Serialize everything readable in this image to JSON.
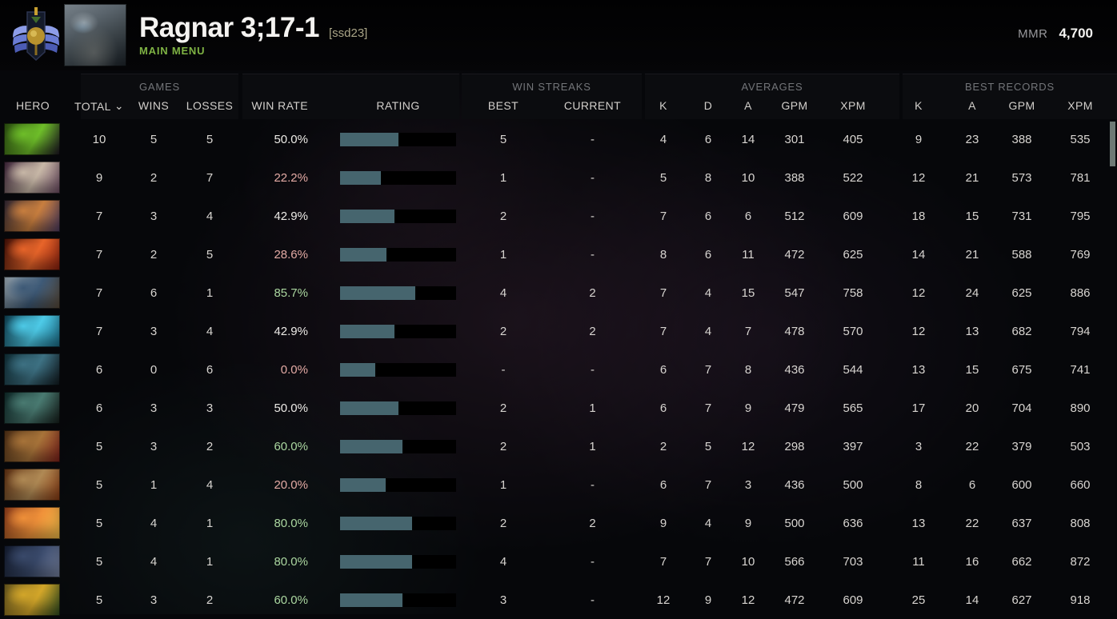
{
  "header": {
    "player_name": "Ragnar 3;17-1",
    "player_tag": "[ssd23]",
    "nav_label": "MAIN MENU",
    "mmr_label": "MMR",
    "mmr_value": "4,700",
    "rank_medal_icon": "winged-shield-medal",
    "accent_green": "#7fb344"
  },
  "table": {
    "groups": {
      "games": "GAMES",
      "win_streaks": "WIN STREAKS",
      "averages": "AVERAGES",
      "best_records": "BEST RECORDS"
    },
    "columns": {
      "hero": "HERO",
      "total": "TOTAL",
      "wins": "WINS",
      "losses": "LOSSES",
      "win_rate": "WIN RATE",
      "rating": "RATING",
      "best": "BEST",
      "current": "CURRENT",
      "k": "K",
      "d": "D",
      "a": "A",
      "gpm": "GPM",
      "xpm": "XPM"
    },
    "sorted_by": "total",
    "bar_fill_color": "#46656e",
    "bar_bg_color": "#000000",
    "rows": [
      {
        "hero": "rubick",
        "hero_colors": [
          "#2a4d10",
          "#6fbf2a",
          "#1a1022"
        ],
        "total": "10",
        "wins": "5",
        "losses": "5",
        "win_rate": "50.0%",
        "win_rate_tone": "mid",
        "rating_pct": 50,
        "best": "5",
        "current": "-",
        "k": "4",
        "d": "6",
        "a": "14",
        "gpm": "301",
        "xpm": "405",
        "rec_k": "9",
        "rec_a": "23",
        "rec_gpm": "388",
        "rec_xpm": "535"
      },
      {
        "hero": "invoker",
        "hero_colors": [
          "#3a2137",
          "#c9b9a8",
          "#6b4a62"
        ],
        "total": "9",
        "wins": "2",
        "losses": "7",
        "win_rate": "22.2%",
        "win_rate_tone": "low",
        "rating_pct": 35,
        "best": "1",
        "current": "-",
        "k": "5",
        "d": "8",
        "a": "10",
        "gpm": "388",
        "xpm": "522",
        "rec_k": "12",
        "rec_a": "21",
        "rec_gpm": "573",
        "rec_xpm": "781"
      },
      {
        "hero": "anti-mage",
        "hero_colors": [
          "#2b2331",
          "#c97f3f",
          "#4a3a62"
        ],
        "total": "7",
        "wins": "3",
        "losses": "4",
        "win_rate": "42.9%",
        "win_rate_tone": "mid",
        "rating_pct": 47,
        "best": "2",
        "current": "-",
        "k": "7",
        "d": "6",
        "a": "6",
        "gpm": "512",
        "xpm": "609",
        "rec_k": "18",
        "rec_a": "15",
        "rec_gpm": "731",
        "rec_xpm": "795"
      },
      {
        "hero": "ember-spirit",
        "hero_colors": [
          "#3d0d06",
          "#e8652a",
          "#8a1f0e"
        ],
        "total": "7",
        "wins": "2",
        "losses": "5",
        "win_rate": "28.6%",
        "win_rate_tone": "low",
        "rating_pct": 40,
        "best": "1",
        "current": "-",
        "k": "8",
        "d": "6",
        "a": "11",
        "gpm": "472",
        "xpm": "625",
        "rec_k": "14",
        "rec_a": "21",
        "rec_gpm": "588",
        "rec_xpm": "769"
      },
      {
        "hero": "kunkka",
        "hero_colors": [
          "#9aa7b0",
          "#3e5a77",
          "#5a4a38"
        ],
        "total": "7",
        "wins": "6",
        "losses": "1",
        "win_rate": "85.7%",
        "win_rate_tone": "high",
        "rating_pct": 65,
        "best": "4",
        "current": "2",
        "k": "7",
        "d": "4",
        "a": "15",
        "gpm": "547",
        "xpm": "758",
        "rec_k": "12",
        "rec_a": "24",
        "rec_gpm": "625",
        "rec_xpm": "886"
      },
      {
        "hero": "morphling",
        "hero_colors": [
          "#0d3b4d",
          "#4ecbe8",
          "#1a6a85"
        ],
        "total": "7",
        "wins": "3",
        "losses": "4",
        "win_rate": "42.9%",
        "win_rate_tone": "mid",
        "rating_pct": 47,
        "best": "2",
        "current": "2",
        "k": "7",
        "d": "4",
        "a": "7",
        "gpm": "478",
        "xpm": "570",
        "rec_k": "12",
        "rec_a": "13",
        "rec_gpm": "682",
        "rec_xpm": "794"
      },
      {
        "hero": "phantom-assassin",
        "hero_colors": [
          "#0e2b33",
          "#3e7284",
          "#10181d"
        ],
        "total": "6",
        "wins": "0",
        "losses": "6",
        "win_rate": "0.0%",
        "win_rate_tone": "low",
        "rating_pct": 30,
        "best": "-",
        "current": "-",
        "k": "6",
        "d": "7",
        "a": "8",
        "gpm": "436",
        "xpm": "544",
        "rec_k": "13",
        "rec_a": "15",
        "rec_gpm": "675",
        "rec_xpm": "741"
      },
      {
        "hero": "slark",
        "hero_colors": [
          "#0d2626",
          "#4a7b72",
          "#151d1a"
        ],
        "total": "6",
        "wins": "3",
        "losses": "3",
        "win_rate": "50.0%",
        "win_rate_tone": "mid",
        "rating_pct": 50,
        "best": "2",
        "current": "1",
        "k": "6",
        "d": "7",
        "a": "9",
        "gpm": "479",
        "xpm": "565",
        "rec_k": "17",
        "rec_a": "20",
        "rec_gpm": "704",
        "rec_xpm": "890"
      },
      {
        "hero": "earthshaker",
        "hero_colors": [
          "#4a2c14",
          "#a8743a",
          "#7e1f1a"
        ],
        "total": "5",
        "wins": "3",
        "losses": "2",
        "win_rate": "60.0%",
        "win_rate_tone": "high",
        "rating_pct": 54,
        "best": "2",
        "current": "1",
        "k": "2",
        "d": "5",
        "a": "12",
        "gpm": "298",
        "xpm": "397",
        "rec_k": "3",
        "rec_a": "22",
        "rec_gpm": "379",
        "rec_xpm": "503"
      },
      {
        "hero": "lifestealer",
        "hero_colors": [
          "#5a2c10",
          "#b08a55",
          "#8a3a12"
        ],
        "total": "5",
        "wins": "1",
        "losses": "4",
        "win_rate": "20.0%",
        "win_rate_tone": "low",
        "rating_pct": 39,
        "best": "1",
        "current": "-",
        "k": "6",
        "d": "7",
        "a": "3",
        "gpm": "436",
        "xpm": "500",
        "rec_k": "8",
        "rec_a": "6",
        "rec_gpm": "600",
        "rec_xpm": "660"
      },
      {
        "hero": "lina",
        "hero_colors": [
          "#8a3a1a",
          "#f0913a",
          "#f4c04a"
        ],
        "total": "5",
        "wins": "4",
        "losses": "1",
        "win_rate": "80.0%",
        "win_rate_tone": "high",
        "rating_pct": 62,
        "best": "2",
        "current": "2",
        "k": "9",
        "d": "4",
        "a": "9",
        "gpm": "500",
        "xpm": "636",
        "rec_k": "13",
        "rec_a": "22",
        "rec_gpm": "637",
        "rec_xpm": "808"
      },
      {
        "hero": "luna",
        "hero_colors": [
          "#131b2e",
          "#3a4a6b",
          "#7a86a4"
        ],
        "total": "5",
        "wins": "4",
        "losses": "1",
        "win_rate": "80.0%",
        "win_rate_tone": "high",
        "rating_pct": 62,
        "best": "4",
        "current": "-",
        "k": "7",
        "d": "7",
        "a": "10",
        "gpm": "566",
        "xpm": "703",
        "rec_k": "11",
        "rec_a": "16",
        "rec_gpm": "662",
        "rec_xpm": "872"
      },
      {
        "hero": "monkey-king",
        "hero_colors": [
          "#6b5a1f",
          "#d4a72a",
          "#2a4a1f"
        ],
        "total": "5",
        "wins": "3",
        "losses": "2",
        "win_rate": "60.0%",
        "win_rate_tone": "high",
        "rating_pct": 54,
        "best": "3",
        "current": "-",
        "k": "12",
        "d": "9",
        "a": "12",
        "gpm": "472",
        "xpm": "609",
        "rec_k": "25",
        "rec_a": "14",
        "rec_gpm": "627",
        "rec_xpm": "918"
      }
    ]
  }
}
